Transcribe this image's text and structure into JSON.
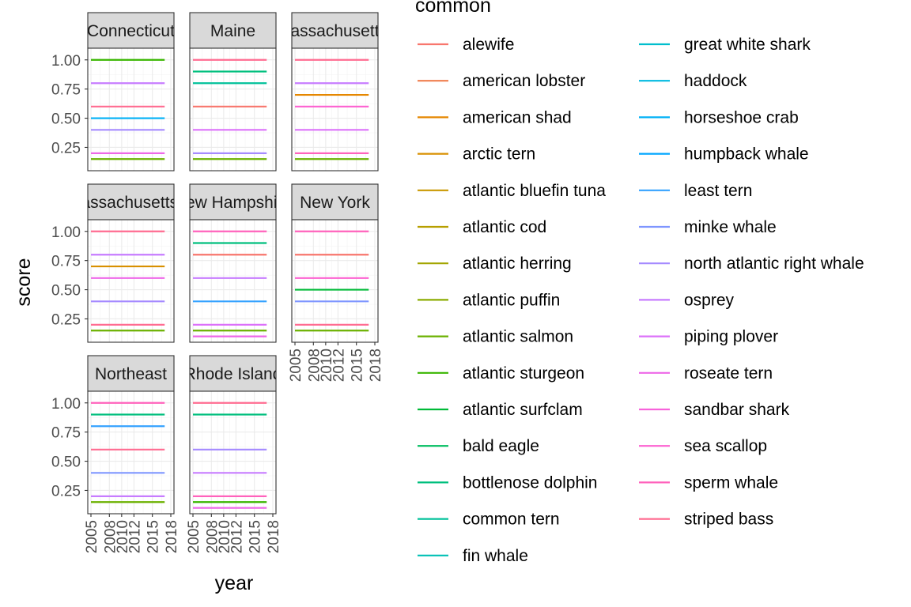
{
  "chart_data": {
    "type": "line",
    "facet_by": "state",
    "xlabel": "year",
    "ylabel": "score",
    "x_ticks": [
      2005,
      2008,
      2010,
      2012,
      2015,
      2018
    ],
    "x_range": [
      2005,
      2018
    ],
    "y_ticks": [
      0.25,
      0.5,
      0.75,
      1.0
    ],
    "y_tick_labels": [
      "0.25",
      "0.50",
      "0.75",
      "1.00"
    ],
    "ylim": [
      0.05,
      1.1
    ],
    "grid": true,
    "legend": {
      "title": "common",
      "placement": "right",
      "entries": [
        {
          "name": "alewife",
          "color": "#F8766D"
        },
        {
          "name": "american lobster",
          "color": "#F07F4F"
        },
        {
          "name": "american shad",
          "color": "#E58700"
        },
        {
          "name": "arctic tern",
          "color": "#D89000"
        },
        {
          "name": "atlantic bluefin tuna",
          "color": "#C99800"
        },
        {
          "name": "atlantic cod",
          "color": "#B79F00"
        },
        {
          "name": "atlantic herring",
          "color": "#A3A500"
        },
        {
          "name": "atlantic puffin",
          "color": "#8BAB00"
        },
        {
          "name": "atlantic salmon",
          "color": "#6BB100"
        },
        {
          "name": "atlantic sturgeon",
          "color": "#39B600"
        },
        {
          "name": "atlantic surfclam",
          "color": "#00BA38"
        },
        {
          "name": "bald eagle",
          "color": "#00BD5F"
        },
        {
          "name": "bottlenose dolphin",
          "color": "#00BF7D"
        },
        {
          "name": "common tern",
          "color": "#00C19A"
        },
        {
          "name": "fin whale",
          "color": "#00C0B5"
        },
        {
          "name": "great white shark",
          "color": "#00BECD"
        },
        {
          "name": "haddock",
          "color": "#00BAE0"
        },
        {
          "name": "horseshoe crab",
          "color": "#00B0F6"
        },
        {
          "name": "humpback whale",
          "color": "#00A5FF"
        },
        {
          "name": "least tern",
          "color": "#35A2FF"
        },
        {
          "name": "minke whale",
          "color": "#7F96FF"
        },
        {
          "name": "north atlantic right whale",
          "color": "#A58AFF"
        },
        {
          "name": "osprey",
          "color": "#C77CFF"
        },
        {
          "name": "piping plover",
          "color": "#DC71FA"
        },
        {
          "name": "roseate tern",
          "color": "#EE67E8"
        },
        {
          "name": "sandbar shark",
          "color": "#F763DB"
        },
        {
          "name": "sea scallop",
          "color": "#FD61D1"
        },
        {
          "name": "sperm whale",
          "color": "#FF62BC"
        },
        {
          "name": "striped bass",
          "color": "#FF6C91"
        }
      ]
    },
    "panels": [
      {
        "strip": "Connecticut",
        "lines": [
          {
            "y": 1.0,
            "color": "#39B600"
          },
          {
            "y": 0.8,
            "color": "#C77CFF"
          },
          {
            "y": 0.6,
            "color": "#FF6C91"
          },
          {
            "y": 0.5,
            "color": "#00B0F6"
          },
          {
            "y": 0.4,
            "color": "#A58AFF"
          },
          {
            "y": 0.2,
            "color": "#EE67E8"
          },
          {
            "y": 0.15,
            "color": "#6BB100"
          }
        ]
      },
      {
        "strip": "Maine",
        "lines": [
          {
            "y": 1.0,
            "color": "#FF6C91"
          },
          {
            "y": 0.9,
            "color": "#00BF7D"
          },
          {
            "y": 0.8,
            "color": "#00C19A"
          },
          {
            "y": 0.6,
            "color": "#F8766D"
          },
          {
            "y": 0.4,
            "color": "#DC71FA"
          },
          {
            "y": 0.2,
            "color": "#A58AFF"
          },
          {
            "y": 0.15,
            "color": "#6BB100"
          }
        ]
      },
      {
        "strip": "Massachusetts-",
        "lines": [
          {
            "y": 1.0,
            "color": "#FF6C91"
          },
          {
            "y": 0.8,
            "color": "#C77CFF"
          },
          {
            "y": 0.7,
            "color": "#E58700"
          },
          {
            "y": 0.6,
            "color": "#FD61D1"
          },
          {
            "y": 0.4,
            "color": "#DC71FA"
          },
          {
            "y": 0.2,
            "color": "#FF62BC"
          },
          {
            "y": 0.15,
            "color": "#6BB100"
          }
        ]
      },
      {
        "strip": "Massachusetts-S",
        "lines": [
          {
            "y": 1.0,
            "color": "#FF6C91"
          },
          {
            "y": 0.8,
            "color": "#C77CFF"
          },
          {
            "y": 0.7,
            "color": "#D89000"
          },
          {
            "y": 0.6,
            "color": "#EE67E8"
          },
          {
            "y": 0.4,
            "color": "#A58AFF"
          },
          {
            "y": 0.2,
            "color": "#FF6C91"
          },
          {
            "y": 0.15,
            "color": "#6BB100"
          }
        ]
      },
      {
        "strip": "New Hampshire",
        "lines": [
          {
            "y": 1.0,
            "color": "#FF62BC"
          },
          {
            "y": 0.9,
            "color": "#00BF7D"
          },
          {
            "y": 0.8,
            "color": "#F8766D"
          },
          {
            "y": 0.6,
            "color": "#C77CFF"
          },
          {
            "y": 0.4,
            "color": "#35A2FF"
          },
          {
            "y": 0.2,
            "color": "#DC71FA"
          },
          {
            "y": 0.15,
            "color": "#6BB100"
          },
          {
            "y": 0.1,
            "color": "#EE67E8"
          }
        ]
      },
      {
        "strip": "New York",
        "lines": [
          {
            "y": 1.0,
            "color": "#FF62BC"
          },
          {
            "y": 0.8,
            "color": "#F8766D"
          },
          {
            "y": 0.6,
            "color": "#FD61D1"
          },
          {
            "y": 0.5,
            "color": "#00BA38"
          },
          {
            "y": 0.4,
            "color": "#7F96FF"
          },
          {
            "y": 0.2,
            "color": "#FF6C91"
          },
          {
            "y": 0.15,
            "color": "#6BB100"
          }
        ]
      },
      {
        "strip": "Northeast",
        "lines": [
          {
            "y": 1.0,
            "color": "#FF62BC"
          },
          {
            "y": 0.9,
            "color": "#00BF7D"
          },
          {
            "y": 0.8,
            "color": "#35A2FF"
          },
          {
            "y": 0.6,
            "color": "#FF6C91"
          },
          {
            "y": 0.4,
            "color": "#7F96FF"
          },
          {
            "y": 0.2,
            "color": "#C77CFF"
          },
          {
            "y": 0.15,
            "color": "#6BB100"
          }
        ]
      },
      {
        "strip": "Rhode Island",
        "lines": [
          {
            "y": 1.0,
            "color": "#FF6C91"
          },
          {
            "y": 0.9,
            "color": "#00BF7D"
          },
          {
            "y": 0.6,
            "color": "#A58AFF"
          },
          {
            "y": 0.4,
            "color": "#C77CFF"
          },
          {
            "y": 0.2,
            "color": "#FF62BC"
          },
          {
            "y": 0.15,
            "color": "#39B600"
          },
          {
            "y": 0.1,
            "color": "#EE67E8"
          }
        ]
      }
    ]
  }
}
